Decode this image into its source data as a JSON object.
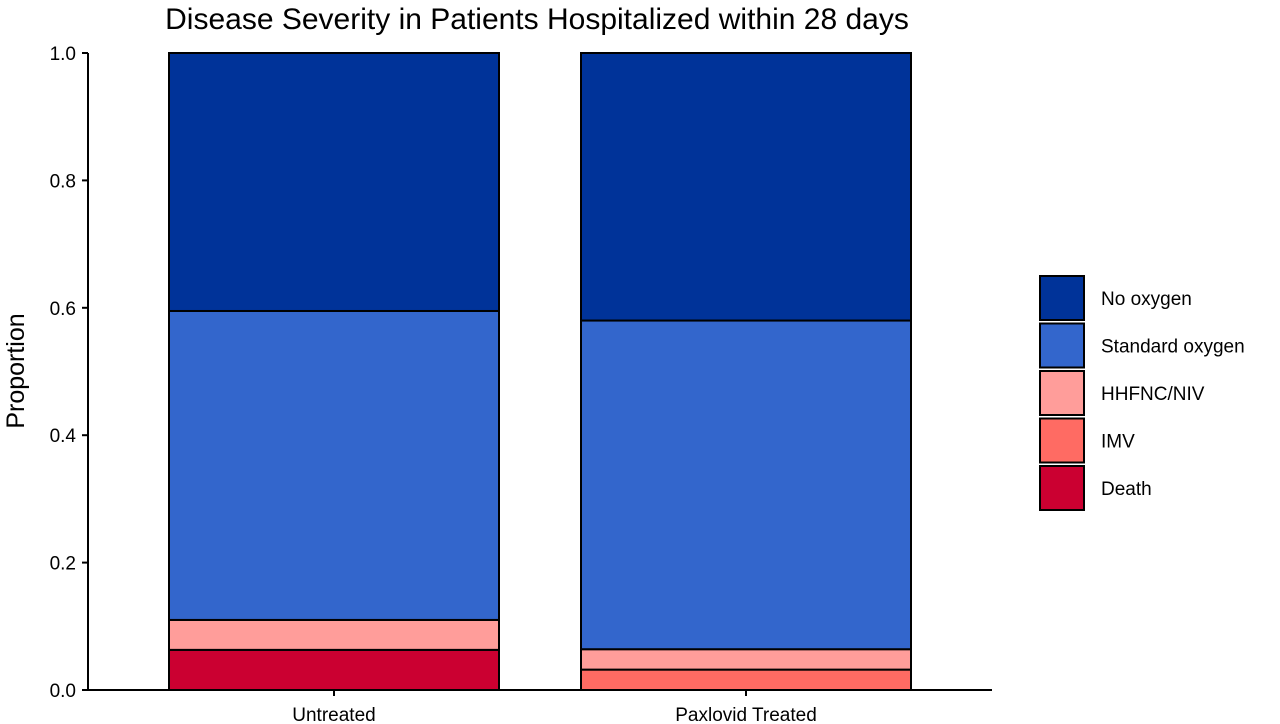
{
  "chart_data": {
    "type": "bar",
    "stacked": true,
    "title": "Disease Severity in Patients Hospitalized within 28 days",
    "xlabel": "",
    "ylabel": "Proportion",
    "ylim": [
      0,
      1
    ],
    "yticks": [
      "0.0",
      "0.2",
      "0.4",
      "0.6",
      "0.8",
      "1.0"
    ],
    "ytick_values": [
      0,
      0.2,
      0.4,
      0.6,
      0.8,
      1.0
    ],
    "categories": [
      "Untreated",
      "Paxlovid Treated"
    ],
    "series": [
      {
        "name": "Death",
        "color": "#CB0031",
        "values": [
          0.063,
          0.0
        ]
      },
      {
        "name": "IMV",
        "color": "#FF6B63",
        "values": [
          0.0,
          0.032
        ]
      },
      {
        "name": "HHFNC/NIV",
        "color": "#FF9D9A",
        "values": [
          0.047,
          0.032
        ]
      },
      {
        "name": "Standard oxygen",
        "color": "#3366CC",
        "values": [
          0.485,
          0.516
        ]
      },
      {
        "name": "No oxygen",
        "color": "#003399",
        "values": [
          0.405,
          0.42
        ]
      }
    ],
    "legend_order": [
      "No oxygen",
      "Standard oxygen",
      "HHFNC/NIV",
      "IMV",
      "Death"
    ],
    "legend_position": "right",
    "grid": false
  }
}
